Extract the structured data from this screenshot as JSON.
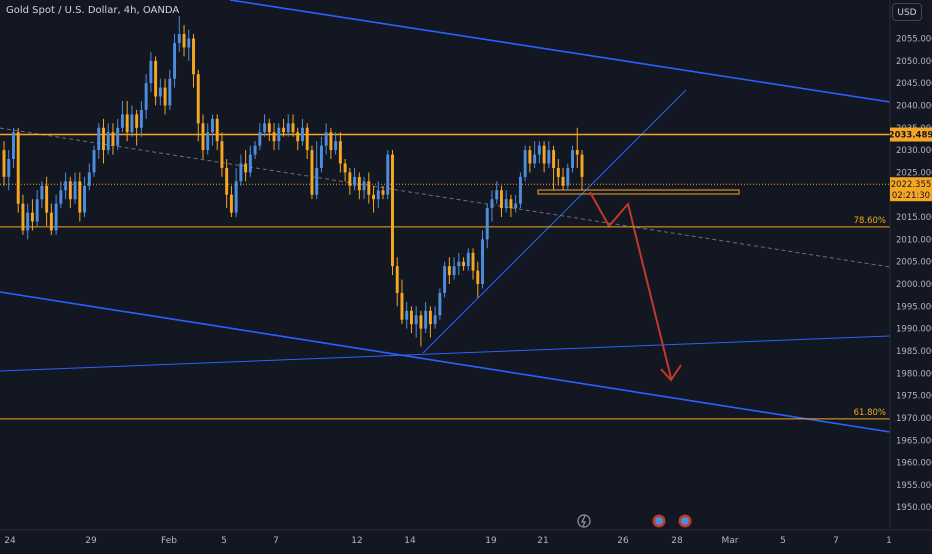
{
  "title": "Gold Spot / U.S. Dollar, 4h, OANDA",
  "currency_button": "USD",
  "colors": {
    "background": "#131722",
    "bull": "#4c8dde",
    "bear": "#f5a623",
    "trend": "#2962ff",
    "level": "#f5a623",
    "arrow": "#c0392b",
    "axis_text": "#b2b5be"
  },
  "axis": {
    "y_ticks": [
      "2055.000",
      "2050.000",
      "2045.000",
      "2040.000",
      "2035.000",
      "2030.000",
      "2025.000",
      "2020.000",
      "2015.000",
      "2010.000",
      "2005.000",
      "2000.000",
      "1995.000",
      "1990.000",
      "1985.000",
      "1980.000",
      "1975.000",
      "1970.000",
      "1965.000",
      "1960.000",
      "1955.000",
      "1950.000"
    ],
    "x_ticks": [
      "24",
      "29",
      "Feb",
      "5",
      "7",
      "12",
      "14",
      "19",
      "21",
      "26",
      "28",
      "Mar",
      "5",
      "7",
      "1"
    ]
  },
  "price_tags": {
    "level_price": "2033.489",
    "last_price": "2022.355",
    "countdown": "02:21:30"
  },
  "fib_labels": {
    "upper": "78.60%",
    "lower": "61.80%"
  },
  "icons": [
    "lightning-icon",
    "news-icon",
    "news-icon"
  ],
  "chart_data": {
    "type": "candlestick",
    "y_range": [
      1946,
      2061
    ],
    "horizontal_levels": [
      2033.489,
      2012.8,
      1969.8
    ],
    "candles": [
      [
        2030,
        2024,
        2032,
        2022
      ],
      [
        2024,
        2028,
        2030,
        2021
      ],
      [
        2028,
        2034,
        2035,
        2026
      ],
      [
        2034,
        2018,
        2035,
        2016
      ],
      [
        2018,
        2012,
        2020,
        2011
      ],
      [
        2012,
        2016,
        2018,
        2010
      ],
      [
        2016,
        2014,
        2019,
        2012
      ],
      [
        2014,
        2019,
        2021,
        2013
      ],
      [
        2019,
        2022,
        2023,
        2017
      ],
      [
        2022,
        2016,
        2024,
        2013
      ],
      [
        2016,
        2012,
        2018,
        2011
      ],
      [
        2012,
        2018,
        2020,
        2011
      ],
      [
        2018,
        2021,
        2023,
        2017
      ],
      [
        2021,
        2023,
        2025,
        2019
      ],
      [
        2023,
        2019,
        2024,
        2017
      ],
      [
        2019,
        2023,
        2025,
        2018
      ],
      [
        2023,
        2016,
        2025,
        2014
      ],
      [
        2016,
        2022,
        2024,
        2015
      ],
      [
        2022,
        2025,
        2027,
        2021
      ],
      [
        2025,
        2030,
        2031,
        2024
      ],
      [
        2030,
        2035,
        2036,
        2028
      ],
      [
        2035,
        2030,
        2037,
        2027
      ],
      [
        2030,
        2034,
        2036,
        2029
      ],
      [
        2034,
        2031,
        2036,
        2029
      ],
      [
        2031,
        2035,
        2037,
        2030
      ],
      [
        2035,
        2038,
        2041,
        2034
      ],
      [
        2038,
        2034,
        2041,
        2032
      ],
      [
        2034,
        2038,
        2040,
        2033
      ],
      [
        2038,
        2035,
        2039,
        2031
      ],
      [
        2035,
        2039,
        2041,
        2033
      ],
      [
        2039,
        2045,
        2047,
        2037
      ],
      [
        2045,
        2050,
        2052,
        2043
      ],
      [
        2050,
        2042,
        2051,
        2040
      ],
      [
        2042,
        2044,
        2046,
        2040
      ],
      [
        2044,
        2040,
        2046,
        2038
      ],
      [
        2040,
        2046,
        2048,
        2039
      ],
      [
        2046,
        2054,
        2056,
        2044
      ],
      [
        2054,
        2056,
        2060,
        2052
      ],
      [
        2056,
        2053,
        2058,
        2051
      ],
      [
        2053,
        2055,
        2057,
        2050
      ],
      [
        2055,
        2047,
        2056,
        2044
      ],
      [
        2047,
        2036,
        2048,
        2032
      ],
      [
        2036,
        2030,
        2038,
        2028
      ],
      [
        2030,
        2034,
        2036,
        2029
      ],
      [
        2034,
        2037,
        2038,
        2031
      ],
      [
        2037,
        2032,
        2038,
        2030
      ],
      [
        2032,
        2026,
        2034,
        2024
      ],
      [
        2026,
        2020,
        2028,
        2017
      ],
      [
        2020,
        2016,
        2022,
        2015
      ],
      [
        2016,
        2023,
        2026,
        2015
      ],
      [
        2023,
        2027,
        2029,
        2022
      ],
      [
        2027,
        2025,
        2030,
        2023
      ],
      [
        2025,
        2029,
        2031,
        2024
      ],
      [
        2029,
        2031,
        2032,
        2028
      ],
      [
        2031,
        2034,
        2036,
        2030
      ],
      [
        2034,
        2036,
        2038,
        2033
      ],
      [
        2036,
        2034,
        2037,
        2032
      ],
      [
        2034,
        2032,
        2036,
        2030
      ],
      [
        2032,
        2035,
        2036,
        2030
      ],
      [
        2035,
        2034,
        2037,
        2033
      ],
      [
        2034,
        2036,
        2038,
        2033
      ],
      [
        2036,
        2034,
        2038,
        2033
      ],
      [
        2034,
        2032,
        2035,
        2030
      ],
      [
        2032,
        2035,
        2037,
        2031
      ],
      [
        2035,
        2030,
        2036,
        2028
      ],
      [
        2030,
        2020,
        2031,
        2019
      ],
      [
        2020,
        2026,
        2032,
        2019
      ],
      [
        2026,
        2031,
        2033,
        2025
      ],
      [
        2031,
        2034,
        2036,
        2029
      ],
      [
        2034,
        2030,
        2035,
        2028
      ],
      [
        2030,
        2032,
        2034,
        2029
      ],
      [
        2032,
        2027,
        2034,
        2025
      ],
      [
        2027,
        2025,
        2028,
        2023
      ],
      [
        2025,
        2022,
        2026,
        2020
      ],
      [
        2022,
        2024,
        2026,
        2021
      ],
      [
        2024,
        2021,
        2025,
        2019
      ],
      [
        2021,
        2023,
        2024,
        2019
      ],
      [
        2023,
        2020,
        2025,
        2018
      ],
      [
        2020,
        2019,
        2022,
        2016
      ],
      [
        2019,
        2021,
        2023,
        2017
      ],
      [
        2021,
        2020,
        2022,
        2019
      ],
      [
        2020,
        2029,
        2030,
        2019
      ],
      [
        2029,
        2004,
        2030,
        2002
      ],
      [
        2004,
        1998,
        2006,
        1995
      ],
      [
        1998,
        1992,
        2001,
        1991
      ],
      [
        1992,
        1994,
        1996,
        1990
      ],
      [
        1994,
        1991,
        1995,
        1989
      ],
      [
        1991,
        1993,
        1995,
        1988
      ],
      [
        1993,
        1990,
        1994,
        1986
      ],
      [
        1990,
        1994,
        1996,
        1989
      ],
      [
        1994,
        1991,
        1995,
        1988
      ],
      [
        1991,
        1993,
        1995,
        1990
      ],
      [
        1993,
        1998,
        1999,
        1992
      ],
      [
        1998,
        2004,
        2005,
        1997
      ],
      [
        2004,
        2002,
        2006,
        2000
      ],
      [
        2002,
        2004,
        2006,
        2001
      ],
      [
        2004,
        2005,
        2007,
        2002
      ],
      [
        2005,
        2004,
        2006,
        2003
      ],
      [
        2004,
        2007,
        2008,
        2003
      ],
      [
        2007,
        2003,
        2008,
        2001
      ],
      [
        2003,
        2000,
        2005,
        1997
      ],
      [
        2000,
        2010,
        2012,
        1999
      ],
      [
        2010,
        2017,
        2018,
        2008
      ],
      [
        2017,
        2019,
        2021,
        2014
      ],
      [
        2019,
        2021,
        2023,
        2018
      ],
      [
        2021,
        2017,
        2022,
        2015
      ],
      [
        2017,
        2019,
        2021,
        2016
      ],
      [
        2019,
        2017,
        2020,
        2015
      ],
      [
        2017,
        2018,
        2020,
        2016
      ],
      [
        2018,
        2024,
        2025,
        2017
      ],
      [
        2024,
        2030,
        2031,
        2023
      ],
      [
        2030,
        2027,
        2031,
        2025
      ],
      [
        2027,
        2029,
        2032,
        2026
      ],
      [
        2029,
        2031,
        2032,
        2027
      ],
      [
        2031,
        2027,
        2032,
        2025
      ],
      [
        2027,
        2030,
        2032,
        2026
      ],
      [
        2030,
        2026,
        2031,
        2021
      ],
      [
        2026,
        2024,
        2028,
        2022
      ],
      [
        2024,
        2022,
        2026,
        2021
      ],
      [
        2022,
        2026,
        2027,
        2021
      ],
      [
        2026,
        2030,
        2031,
        2025
      ],
      [
        2030,
        2029,
        2035,
        2026
      ],
      [
        2029,
        2024,
        2030,
        2021
      ]
    ]
  }
}
